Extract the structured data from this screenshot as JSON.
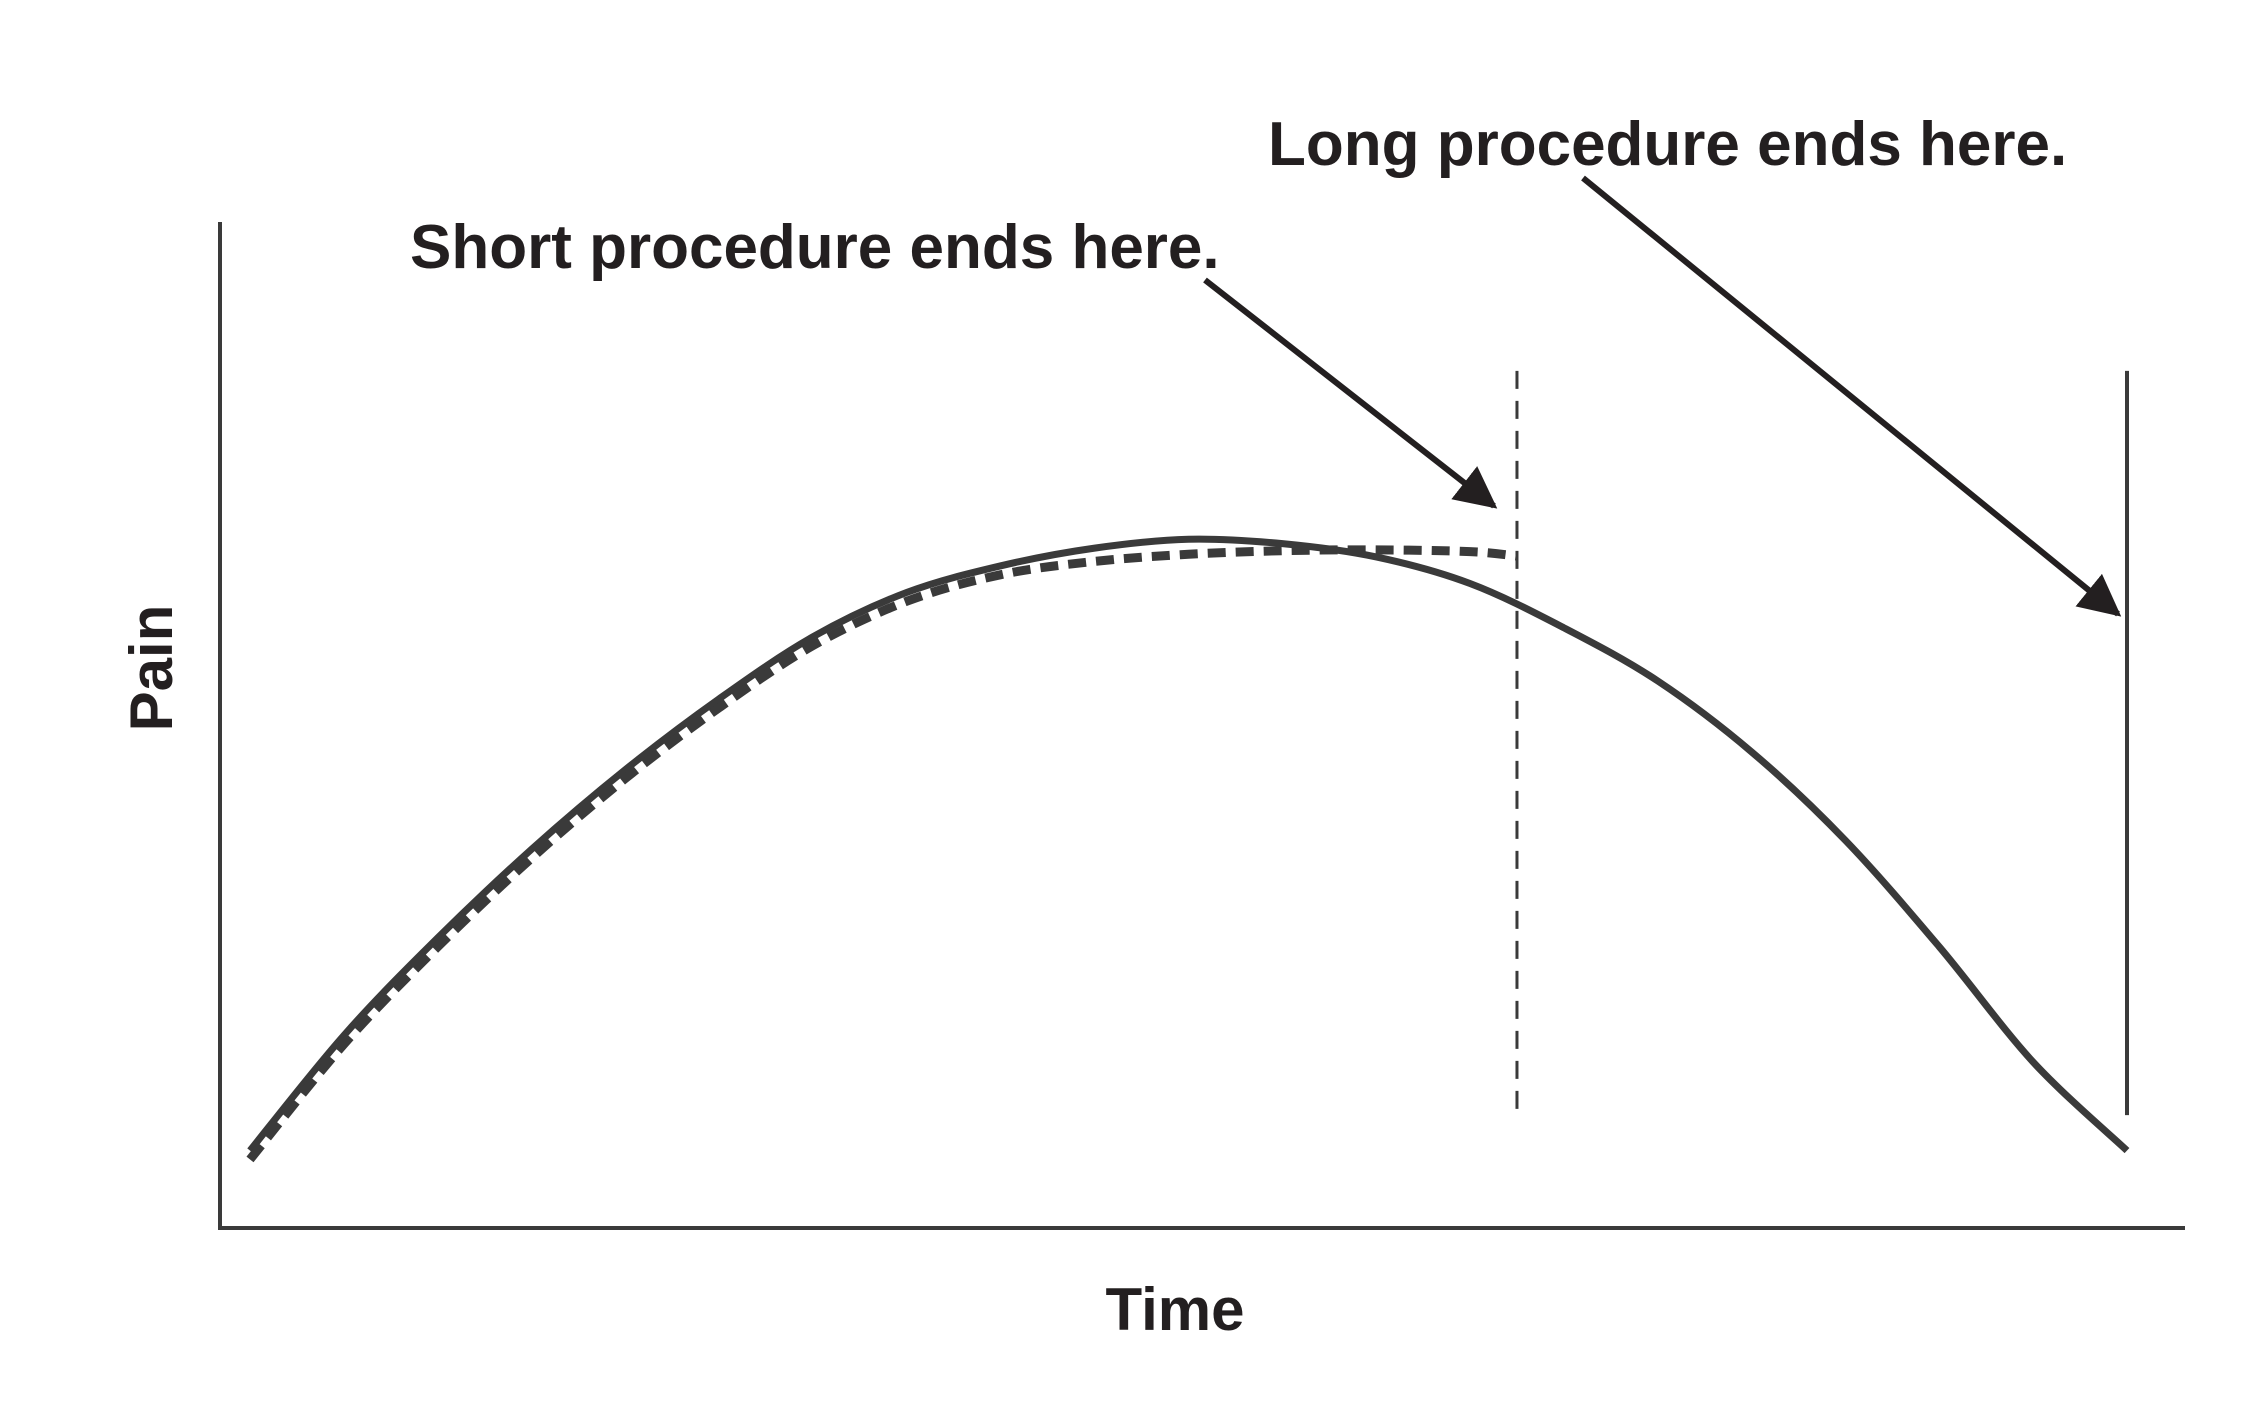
{
  "chart_data": {
    "type": "line",
    "title": "",
    "xlabel": "Time",
    "ylabel": "Pain",
    "xlim": [
      0,
      100
    ],
    "ylim": [
      0,
      100
    ],
    "grid": false,
    "legend": "none",
    "colors": {
      "curve": "#3a3a3a",
      "axis": "#3a3a3a",
      "text": "#231f20"
    },
    "series": [
      {
        "style": "solid",
        "x": [
          0,
          5,
          10,
          15,
          20,
          25,
          30,
          35,
          40,
          45,
          50,
          55,
          60,
          65,
          70,
          75,
          80,
          85,
          90,
          95,
          100
        ],
        "y": [
          4,
          17,
          28,
          38,
          47,
          55,
          62,
          67,
          70,
          72,
          73,
          72.5,
          71,
          68,
          63,
          57,
          49,
          39,
          27,
          14,
          4
        ]
      },
      {
        "style": "dashed",
        "x": [
          0,
          5,
          10,
          15,
          20,
          25,
          30,
          35,
          40,
          45,
          50,
          55,
          60,
          65,
          67.5
        ],
        "y": [
          3,
          16,
          27,
          37,
          46,
          54,
          61,
          66,
          69,
          70.5,
          71.3,
          71.7,
          71.8,
          71.6,
          71.1
        ]
      }
    ],
    "markers": [
      {
        "x": 67.5,
        "style": "dashed",
        "y_from": 8,
        "y_to": 92
      },
      {
        "x": 100,
        "style": "solid",
        "y_from": 8,
        "y_to": 92
      }
    ],
    "annotations": [
      {
        "text": "Short procedure ends here.",
        "target_x": 67.5,
        "target_y": 72
      },
      {
        "text": "Long procedure ends here.",
        "target_x": 100,
        "target_y": 62
      }
    ]
  }
}
